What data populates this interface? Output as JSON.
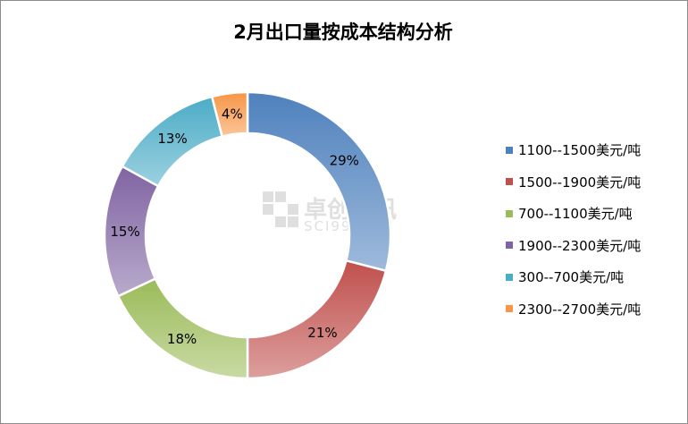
{
  "chart_data": {
    "type": "pie",
    "style": "donut",
    "title": "2月出口量按成本结构分析",
    "categories": [
      "1100--1500美元/吨",
      "1500--1900美元/吨",
      "700--1100美元/吨",
      "1900--2300美元/吨",
      "300--700美元/吨",
      "2300--2700美元/吨"
    ],
    "values": [
      29,
      21,
      18,
      15,
      13,
      4
    ],
    "labels": [
      "29%",
      "21%",
      "18%",
      "15%",
      "13%",
      "4%"
    ],
    "colors": [
      "#4f81bd",
      "#c0504d",
      "#9bbb59",
      "#8064a2",
      "#4bacc6",
      "#f79646"
    ],
    "legend_position": "right"
  },
  "watermark": {
    "cn": "卓创资讯",
    "en": "SCI99.COM"
  }
}
